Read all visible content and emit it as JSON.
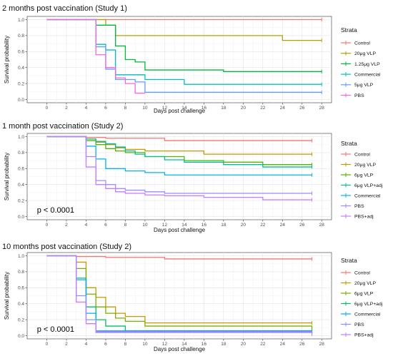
{
  "chart_data": [
    {
      "type": "line",
      "subtype": "kaplan-meier",
      "title": "2 months post vaccination (Study 1)",
      "xlabel": "Days post challenge",
      "ylabel": "Survival probability",
      "xlim": [
        -2,
        29
      ],
      "ylim": [
        -0.04,
        1.04
      ],
      "xticks": [
        0,
        2,
        4,
        6,
        8,
        10,
        12,
        14,
        16,
        18,
        20,
        22,
        24,
        26,
        28
      ],
      "yticks": [
        0.0,
        0.2,
        0.4,
        0.6,
        0.8,
        1.0
      ],
      "ytick_labels": [
        "0.0",
        "0.2",
        "0.4",
        "0.6",
        "0.8",
        "1.0"
      ],
      "legend_title": "Strata",
      "legend_position": "right",
      "pvalue": "",
      "grid": true,
      "series": [
        {
          "name": "Control",
          "color": "#F8766D",
          "x": [
            0,
            28
          ],
          "y": [
            1.0,
            1.0
          ],
          "censor": [
            [
              28,
              1.0
            ]
          ]
        },
        {
          "name": "20μg VLP",
          "color": "#B79F00",
          "x": [
            0,
            6,
            7,
            24,
            28
          ],
          "y": [
            1.0,
            0.93,
            0.8,
            0.74,
            0.74
          ],
          "censor": [
            [
              28,
              0.74
            ]
          ]
        },
        {
          "name": "1.25μg VLP",
          "color": "#00BA38",
          "x": [
            0,
            5,
            7,
            8,
            9,
            10,
            18,
            28
          ],
          "y": [
            1.0,
            0.93,
            0.67,
            0.5,
            0.47,
            0.37,
            0.35,
            0.35
          ],
          "censor": [
            [
              28,
              0.35
            ]
          ]
        },
        {
          "name": "Commercial",
          "color": "#00BFC4",
          "x": [
            0,
            5,
            6,
            7,
            10,
            14,
            28
          ],
          "y": [
            1.0,
            0.69,
            0.62,
            0.31,
            0.25,
            0.19,
            0.19
          ],
          "censor": [
            [
              28,
              0.19
            ]
          ]
        },
        {
          "name": "5μg VLP",
          "color": "#619CFF",
          "x": [
            0,
            5,
            6,
            7,
            9,
            10,
            28
          ],
          "y": [
            1.0,
            0.66,
            0.38,
            0.25,
            0.22,
            0.09,
            0.09
          ],
          "censor": [
            [
              28,
              0.09
            ]
          ]
        },
        {
          "name": "PBS",
          "color": "#F564E3",
          "x": [
            0,
            5,
            6,
            7,
            8,
            9,
            10
          ],
          "y": [
            1.0,
            0.56,
            0.4,
            0.27,
            0.2,
            0.08,
            0.08
          ],
          "censor": []
        }
      ]
    },
    {
      "type": "line",
      "subtype": "kaplan-meier",
      "title": "1 month post vaccination (Study 2)",
      "xlabel": "Days post challenge",
      "ylabel": "Survival probability",
      "xlim": [
        -2,
        29
      ],
      "ylim": [
        -0.04,
        1.04
      ],
      "xticks": [
        0,
        2,
        4,
        6,
        8,
        10,
        12,
        14,
        16,
        18,
        20,
        22,
        24,
        26,
        28
      ],
      "yticks": [
        0.0,
        0.2,
        0.4,
        0.6,
        0.8,
        1.0
      ],
      "ytick_labels": [
        "0.0",
        "0.2",
        "0.4",
        "0.6",
        "0.8",
        "1.0"
      ],
      "legend_title": "Strata",
      "legend_position": "right",
      "pvalue": "p < 0.0001",
      "grid": true,
      "series": [
        {
          "name": "Control",
          "color": "#F8766D",
          "x": [
            0,
            4,
            6,
            12,
            27
          ],
          "y": [
            1.0,
            0.99,
            0.98,
            0.95,
            0.95
          ],
          "censor": [
            [
              27,
              0.95
            ]
          ]
        },
        {
          "name": "20μg VLP",
          "color": "#C49A00",
          "x": [
            0,
            4,
            5,
            6,
            7,
            8,
            10,
            16,
            27
          ],
          "y": [
            1.0,
            0.97,
            0.93,
            0.9,
            0.86,
            0.84,
            0.82,
            0.78,
            0.78
          ],
          "censor": [
            [
              27,
              0.78
            ]
          ]
        },
        {
          "name": "6μg VLP",
          "color": "#53B400",
          "x": [
            0,
            4,
            5,
            6,
            7,
            8,
            10,
            14,
            18,
            22,
            27
          ],
          "y": [
            1.0,
            0.95,
            0.9,
            0.85,
            0.82,
            0.8,
            0.75,
            0.7,
            0.68,
            0.65,
            0.65
          ],
          "censor": [
            [
              27,
              0.65
            ]
          ]
        },
        {
          "name": "6μg VLP+adj",
          "color": "#00C094",
          "x": [
            0,
            4,
            5,
            6,
            7,
            8,
            9,
            10,
            12,
            14,
            18,
            22,
            27
          ],
          "y": [
            1.0,
            0.97,
            0.94,
            0.91,
            0.87,
            0.82,
            0.78,
            0.75,
            0.71,
            0.68,
            0.65,
            0.62,
            0.62
          ],
          "censor": [
            [
              27,
              0.62
            ]
          ]
        },
        {
          "name": "Commercial",
          "color": "#00B6EB",
          "x": [
            0,
            4,
            5,
            6,
            8,
            10,
            12,
            27
          ],
          "y": [
            1.0,
            0.88,
            0.72,
            0.6,
            0.57,
            0.55,
            0.52,
            0.52
          ],
          "censor": [
            [
              27,
              0.52
            ]
          ]
        },
        {
          "name": "PBS",
          "color": "#A58AFF",
          "x": [
            0,
            4,
            5,
            6,
            7,
            8,
            10,
            12,
            27
          ],
          "y": [
            1.0,
            0.75,
            0.45,
            0.4,
            0.35,
            0.33,
            0.31,
            0.29,
            0.29
          ],
          "censor": [
            [
              27,
              0.29
            ]
          ]
        },
        {
          "name": "PBS+adj",
          "color": "#C77CFF",
          "x": [
            0,
            4,
            5,
            6,
            7,
            8,
            10,
            12,
            16,
            22,
            27
          ],
          "y": [
            1.0,
            0.62,
            0.4,
            0.35,
            0.31,
            0.29,
            0.27,
            0.26,
            0.24,
            0.21,
            0.21
          ],
          "censor": [
            [
              27,
              0.21
            ]
          ]
        }
      ]
    },
    {
      "type": "line",
      "subtype": "kaplan-meier",
      "title": "10 months post vaccination (Study 2)",
      "xlabel": "Days post challenge",
      "ylabel": "Survival probability",
      "xlim": [
        -2,
        29
      ],
      "ylim": [
        -0.04,
        1.04
      ],
      "xticks": [
        0,
        2,
        4,
        6,
        8,
        10,
        12,
        14,
        16,
        18,
        20,
        22,
        24,
        26,
        28
      ],
      "yticks": [
        0.0,
        0.2,
        0.4,
        0.6,
        0.8,
        1.0
      ],
      "ytick_labels": [
        "0.0",
        "0.2",
        "0.4",
        "0.6",
        "0.8",
        "1.0"
      ],
      "legend_title": "Strata",
      "legend_position": "right",
      "pvalue": "p < 0.0001",
      "grid": true,
      "series": [
        {
          "name": "Control",
          "color": "#F8766D",
          "x": [
            0,
            3,
            6,
            12,
            27
          ],
          "y": [
            1.0,
            0.99,
            0.98,
            0.96,
            0.96
          ],
          "censor": [
            [
              27,
              0.96
            ]
          ]
        },
        {
          "name": "20μg VLP",
          "color": "#C49A00",
          "x": [
            0,
            3,
            4,
            5,
            6,
            7,
            8,
            10,
            27
          ],
          "y": [
            1.0,
            0.92,
            0.6,
            0.48,
            0.36,
            0.28,
            0.24,
            0.16,
            0.16
          ],
          "censor": [
            [
              27,
              0.16
            ]
          ]
        },
        {
          "name": "6μg VLP",
          "color": "#7CAE00",
          "x": [
            0,
            3,
            4,
            5,
            6,
            7,
            8,
            10,
            27
          ],
          "y": [
            1.0,
            0.84,
            0.52,
            0.36,
            0.28,
            0.22,
            0.18,
            0.12,
            0.08
          ],
          "censor": [
            [
              27,
              0.08
            ]
          ]
        },
        {
          "name": "6μg VLP+adj",
          "color": "#00BE67",
          "x": [
            0,
            3,
            4,
            5,
            6,
            8,
            27
          ],
          "y": [
            1.0,
            0.72,
            0.36,
            0.2,
            0.12,
            0.06,
            0.06
          ],
          "censor": [
            [
              27,
              0.06
            ]
          ]
        },
        {
          "name": "Commercial",
          "color": "#00A9FF",
          "x": [
            0,
            3,
            4,
            5,
            27
          ],
          "y": [
            1.0,
            0.7,
            0.28,
            0.06,
            0.04
          ],
          "censor": [
            [
              27,
              0.04
            ]
          ]
        },
        {
          "name": "PBS",
          "color": "#8494FF",
          "x": [
            0,
            3,
            4,
            5,
            27
          ],
          "y": [
            1.0,
            0.5,
            0.2,
            0.05,
            0.03
          ],
          "censor": [
            [
              27,
              0.03
            ]
          ]
        },
        {
          "name": "PBS+adj",
          "color": "#C77CFF",
          "x": [
            0,
            3,
            4,
            5,
            27
          ],
          "y": [
            1.0,
            0.42,
            0.15,
            0.04,
            0.02
          ],
          "censor": [
            [
              27,
              0.02
            ]
          ]
        }
      ]
    }
  ]
}
